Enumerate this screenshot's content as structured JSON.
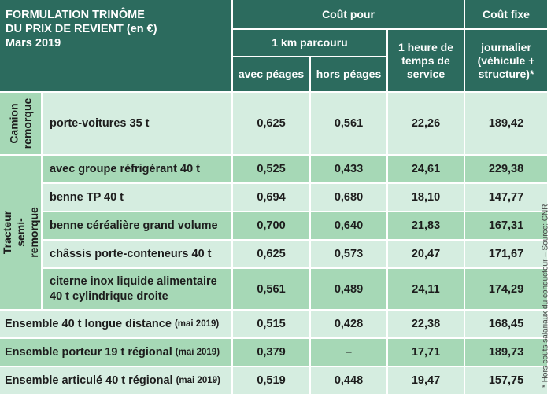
{
  "title": {
    "line1": "FORMULATION TRINÔME",
    "line2": "DU PRIX DE REVIENT (en €)",
    "line3": "Mars 2019"
  },
  "headers": {
    "cout_pour": "Coût pour",
    "cout_fixe": "Coût fixe",
    "km": "1 km parcouru",
    "heure": "1 heure de temps de service",
    "journalier": "journalier (véhicule + structure)*",
    "avec_peages": "avec péages",
    "hors_peages": "hors péages"
  },
  "groups": {
    "camion": "Camion remorque",
    "tracteur": "Tracteur semi-remorque"
  },
  "rows": [
    {
      "label": "porte-voitures 35 t",
      "suffix": "",
      "avec": "0,625",
      "hors": "0,561",
      "heure": "22,26",
      "journalier": "189,42"
    },
    {
      "label": "avec groupe réfrigérant 40 t",
      "suffix": "",
      "avec": "0,525",
      "hors": "0,433",
      "heure": "24,61",
      "journalier": "229,38"
    },
    {
      "label": "benne TP 40 t",
      "suffix": "",
      "avec": "0,694",
      "hors": "0,680",
      "heure": "18,10",
      "journalier": "147,77"
    },
    {
      "label": "benne céréalière grand volume",
      "suffix": "",
      "avec": "0,700",
      "hors": "0,640",
      "heure": "21,83",
      "journalier": "167,31"
    },
    {
      "label": "châssis porte-conteneurs 40 t",
      "suffix": "",
      "avec": "0,625",
      "hors": "0,573",
      "heure": "20,47",
      "journalier": "171,67"
    },
    {
      "label": "citerne inox liquide alimentaire",
      "label2": "40 t cylindrique droite",
      "suffix": "",
      "avec": "0,561",
      "hors": "0,489",
      "heure": "24,11",
      "journalier": "174,29"
    },
    {
      "label": "Ensemble 40 t longue distance",
      "suffix": "(mai 2019)",
      "avec": "0,515",
      "hors": "0,428",
      "heure": "22,38",
      "journalier": "168,45"
    },
    {
      "label": "Ensemble porteur 19 t régional",
      "suffix": "(mai 2019)",
      "avec": "0,379",
      "hors": "–",
      "heure": "17,71",
      "journalier": "189,73"
    },
    {
      "label": "Ensemble articulé 40 t régional",
      "suffix": "(mai 2019)",
      "avec": "0,519",
      "hors": "0,448",
      "heure": "19,47",
      "journalier": "157,75"
    }
  ],
  "side_note": "* Hors coûts salariaux du conducteur – Source: CNR"
}
